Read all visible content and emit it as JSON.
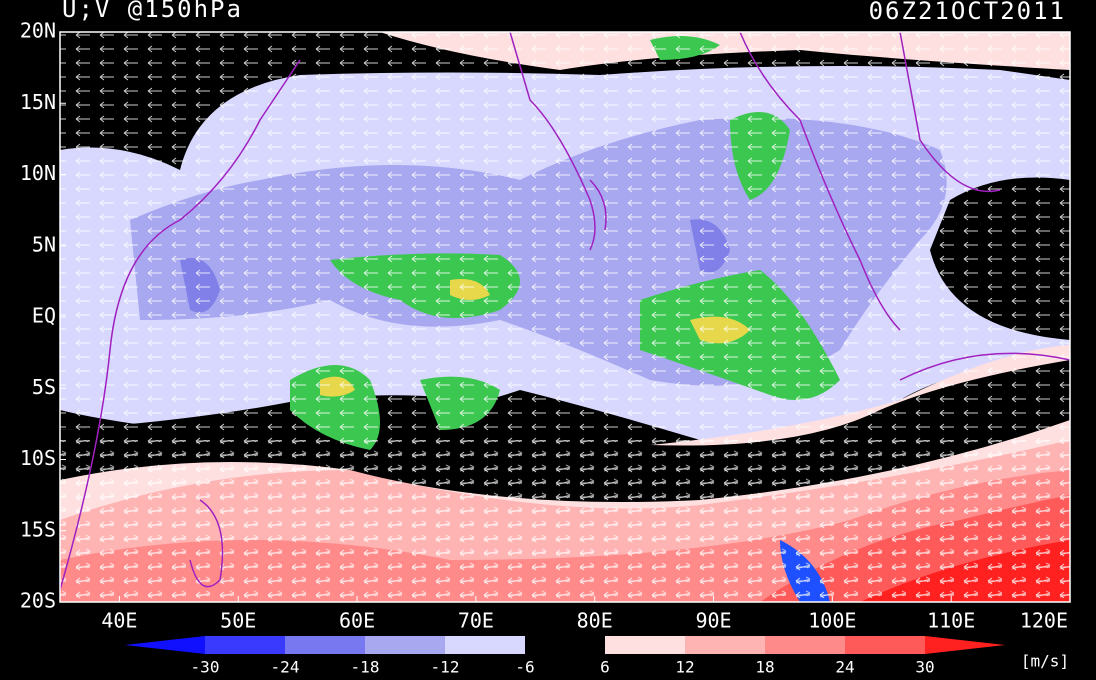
{
  "header": {
    "title": "U;V @150hPa",
    "time": "06Z21OCT2011"
  },
  "latitude_labels": [
    "20N",
    "15N",
    "10N",
    "5N",
    "EQ",
    "5S",
    "10S",
    "15S",
    "20S"
  ],
  "longitude_labels": [
    "40E",
    "50E",
    "60E",
    "70E",
    "80E",
    "90E",
    "100E",
    "110E",
    "120E"
  ],
  "colorbar": {
    "labels": [
      "-30",
      "-24",
      "-18",
      "-12",
      "-6",
      "6",
      "12",
      "18",
      "24",
      "30"
    ],
    "unit": "[m/s]"
  }
}
